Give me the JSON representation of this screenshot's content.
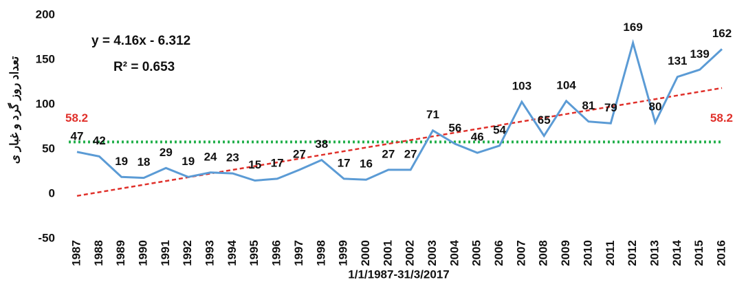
{
  "chart_data": {
    "type": "line",
    "y_axis_label": "تعداد روز گرد و غبار ی",
    "x_axis_label": "1/1/1987-31/3/2017",
    "categories": [
      "1987",
      "1988",
      "1989",
      "1990",
      "1991",
      "1992",
      "1993",
      "1994",
      "1995",
      "1996",
      "1997",
      "1998",
      "1999",
      "2000",
      "2001",
      "2002",
      "2003",
      "2004",
      "2005",
      "2006",
      "2007",
      "2008",
      "2009",
      "2010",
      "2011",
      "2012",
      "2013",
      "2014",
      "2015",
      "2016"
    ],
    "series": [
      {
        "color": "#5b9bd5",
        "values": [
          47,
          42,
          19,
          18,
          29,
          19,
          24,
          23,
          15,
          17,
          27,
          38,
          17,
          16,
          27,
          27,
          71,
          56,
          46,
          54,
          103,
          65,
          104,
          81,
          79,
          169,
          80,
          131,
          139,
          162
        ]
      }
    ],
    "trendline": {
      "equation": "y = 4.16x - 6.312",
      "r_squared": "R² = 0.653",
      "slope": 4.16,
      "intercept": -6.312,
      "color": "#e0302a"
    },
    "mean": {
      "value": 58.2,
      "color": "#22b04b",
      "label_color": "#e0302a"
    },
    "ylim": [
      -50,
      200
    ],
    "yticks": [
      -50,
      0,
      50,
      100,
      150,
      200
    ]
  }
}
